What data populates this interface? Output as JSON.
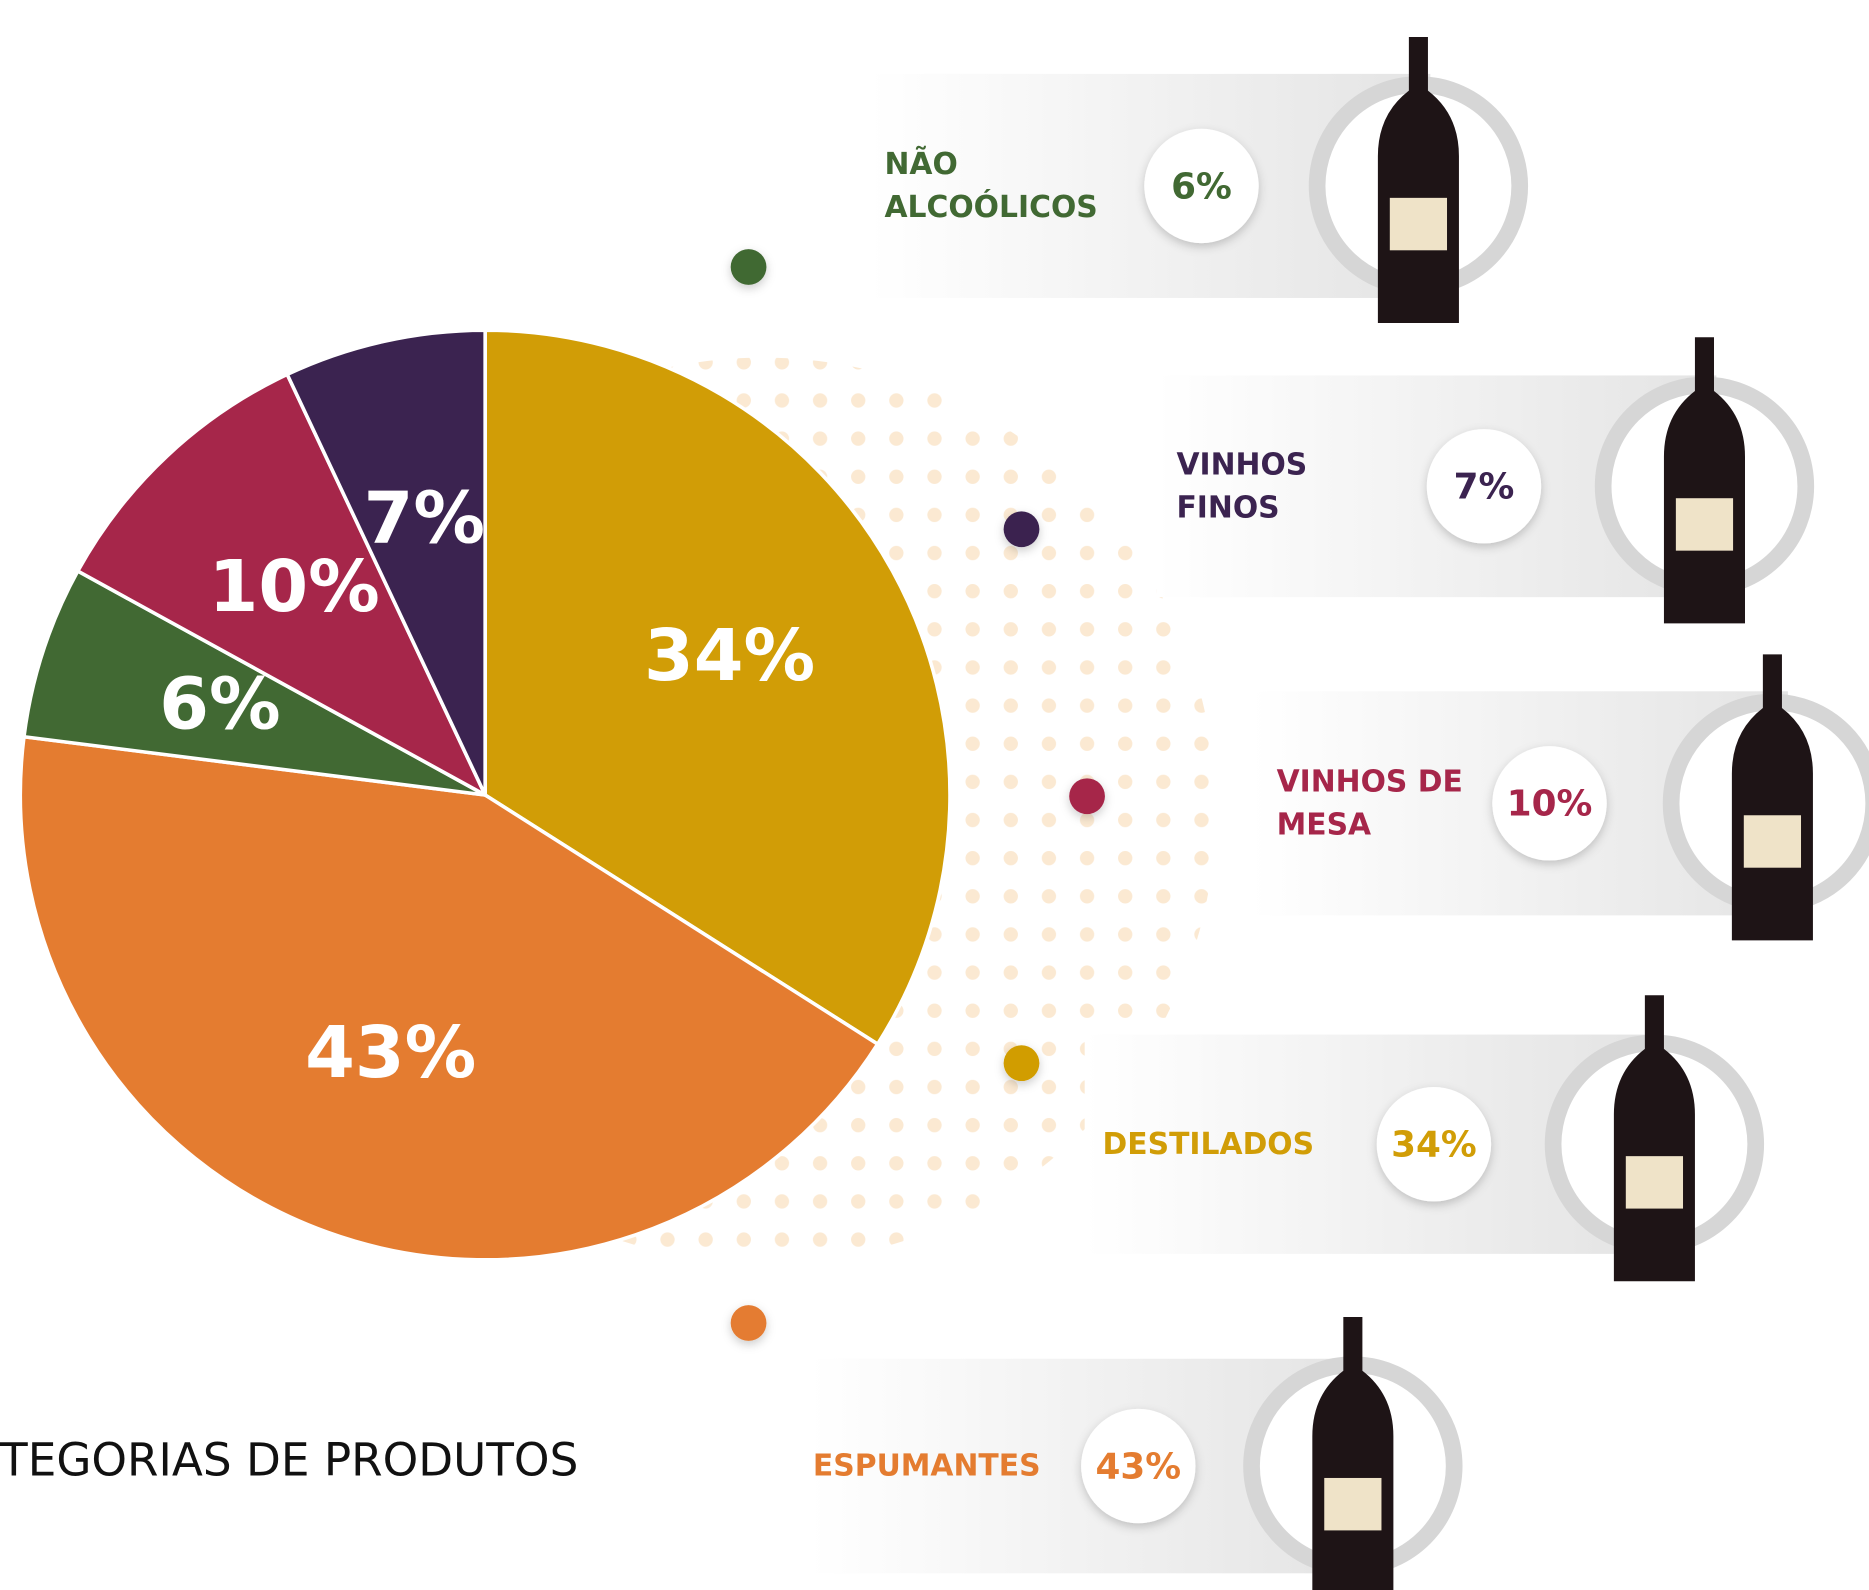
{
  "chart_data": {
    "type": "pie",
    "title": "TEGORIAS DE PRODUTOS",
    "categories": [
      "DESTILADOS",
      "ESPUMANTES",
      "NÃO ALCOÓLICOS",
      "VINHOS DE MESA",
      "VINHOS FINOS"
    ],
    "values": [
      34,
      43,
      6,
      10,
      7
    ],
    "value_labels": [
      "34%",
      "43%",
      "6%",
      "10%",
      "7%"
    ],
    "colors": [
      "#d19d06",
      "#e47c30",
      "#416933",
      "#a6264a",
      "#3b2350"
    ]
  }
}
